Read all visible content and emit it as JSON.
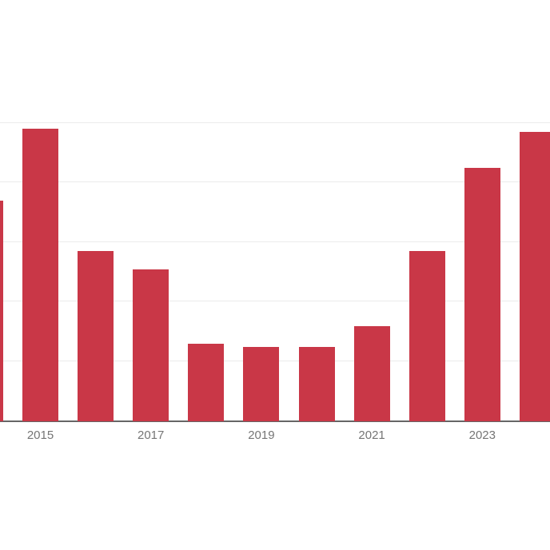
{
  "page": {
    "background_color": "#ffffff"
  },
  "chart_data": {
    "type": "bar",
    "title": "",
    "xlabel": "",
    "ylabel": "",
    "x": [
      2014,
      2015,
      2016,
      2017,
      2018,
      2019,
      2020,
      2021,
      2022,
      2023,
      2024
    ],
    "values": [
      74,
      98,
      57,
      51,
      26,
      25,
      25,
      32,
      57,
      85,
      97
    ],
    "ylim": [
      0,
      100
    ],
    "grid": true,
    "gridline_values": [
      0,
      20,
      40,
      60,
      80,
      100
    ],
    "x_tick_labels": [
      "2015",
      "2017",
      "2019",
      "2021",
      "2023"
    ],
    "x_tick_years": [
      2015,
      2017,
      2019,
      2021,
      2023
    ],
    "legend_position": "none",
    "colors": {
      "bar": "#c93747",
      "gridline": "#ebebeb",
      "axis_line": "#666666",
      "tick_label": "#757575",
      "background": "#ffffff"
    }
  }
}
